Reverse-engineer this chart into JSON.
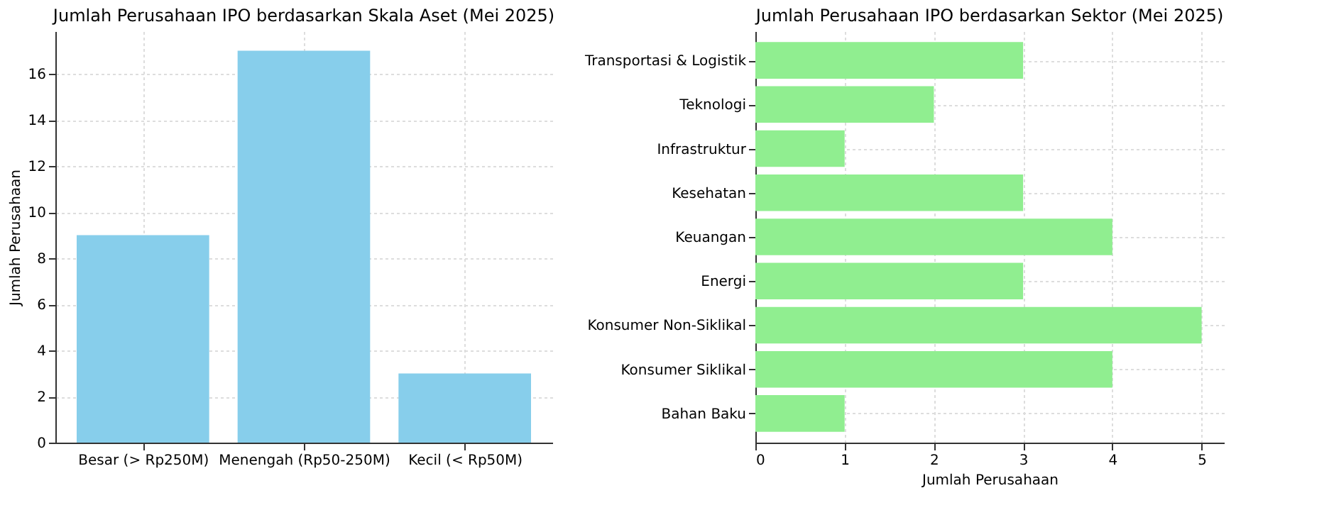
{
  "chart_data": [
    {
      "type": "bar",
      "title": "Jumlah Perusahaan IPO berdasarkan Skala Aset (Mei 2025)",
      "ylabel": "Jumlah Perusahaan",
      "categories": [
        "Besar (> Rp250M)",
        "Menengah (Rp50-250M)",
        "Kecil (< Rp50M)"
      ],
      "values": [
        9,
        17,
        3
      ],
      "color": "#87ceeb",
      "ylim": [
        0,
        17.85
      ],
      "yticks": [
        0,
        2,
        4,
        6,
        8,
        10,
        12,
        14,
        16
      ],
      "grid": true
    },
    {
      "type": "bar",
      "orientation": "horizontal",
      "title": "Jumlah Perusahaan IPO berdasarkan Sektor (Mei 2025)",
      "xlabel": "Jumlah Perusahaan",
      "categories": [
        "Transportasi & Logistik",
        "Teknologi",
        "Infrastruktur",
        "Kesehatan",
        "Keuangan",
        "Energi",
        "Konsumer Non-Siklikal",
        "Konsumer Siklikal",
        "Bahan Baku"
      ],
      "values": [
        3,
        2,
        1,
        3,
        4,
        3,
        5,
        4,
        1
      ],
      "color": "#90ee90",
      "xlim": [
        0,
        5.25
      ],
      "xticks": [
        0,
        1,
        2,
        3,
        4,
        5
      ],
      "grid": true
    }
  ]
}
